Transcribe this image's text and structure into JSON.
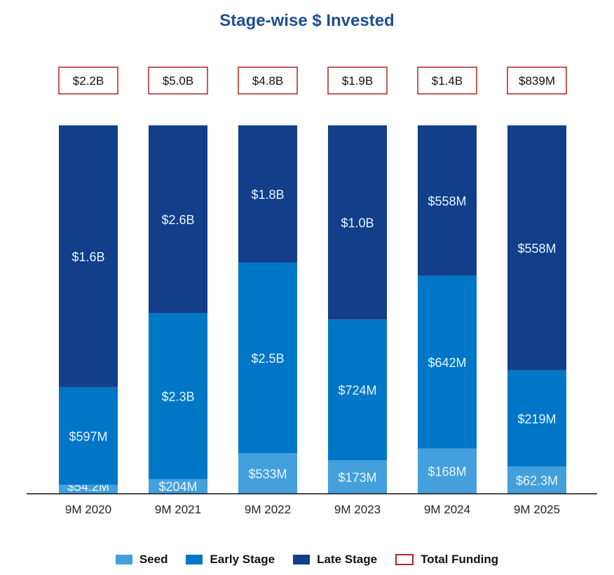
{
  "chart_data": {
    "type": "bar",
    "stacked": "100%",
    "title": "Stage-wise $ Invested",
    "categories": [
      "9M 2020",
      "9M 2021",
      "9M 2022",
      "9M 2023",
      "9M 2024",
      "9M 2025"
    ],
    "units": "USD millions",
    "series": [
      {
        "name": "Seed",
        "color": "#44a0dc",
        "values": [
          54.2,
          204,
          533,
          173,
          168,
          62.3
        ],
        "labels": [
          "$54.2M",
          "$204M",
          "$533M",
          "$173M",
          "$168M",
          "$62.3M"
        ]
      },
      {
        "name": "Early Stage",
        "color": "#0076c6",
        "values": [
          597,
          2300,
          2500,
          724,
          642,
          219
        ],
        "labels": [
          "$597M",
          "$2.3B",
          "$2.5B",
          "$724M",
          "$642M",
          "$219M"
        ]
      },
      {
        "name": "Late Stage",
        "color": "#123e8a",
        "values": [
          1600,
          2600,
          1800,
          1000,
          558,
          558
        ],
        "labels": [
          "$1.6B",
          "$2.6B",
          "$1.8B",
          "$1.0B",
          "$558M",
          "$558M"
        ]
      }
    ],
    "totals": {
      "name": "Total Funding",
      "color": "#b22222",
      "labels": [
        "$2.2B",
        "$5.0B",
        "$4.8B",
        "$1.9B",
        "$1.4B",
        "$839M"
      ]
    },
    "legend_position": "bottom",
    "grid": false
  }
}
